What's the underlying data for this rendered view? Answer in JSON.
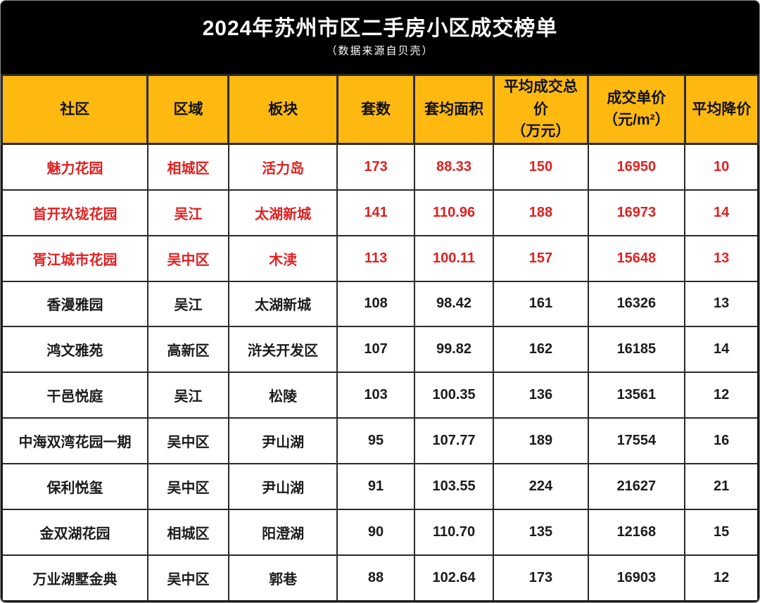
{
  "title_band": {
    "title": "2024年苏州市区二手房小区成交榜单",
    "subtitle": "（数据来源自贝壳）"
  },
  "chart_data": {
    "type": "table",
    "title": "2024年苏州市区二手房小区成交榜单",
    "subtitle": "（数据来源自贝壳）",
    "columns": [
      "社区",
      "区域",
      "板块",
      "套数",
      "套均面积",
      "平均成交总价（万元）",
      "成交单价（元/m²）",
      "平均降价"
    ],
    "columns_display": [
      "社区",
      "区域",
      "板块",
      "套数",
      "套均面积",
      "平均成交总价\n（万元）",
      "成交单价\n（元/m²）",
      "平均降价"
    ],
    "rows": [
      {
        "community": "魅力花园",
        "district": "相城区",
        "plate": "活力岛",
        "units": "173",
        "avg_area": "88.33",
        "avg_total_price": "150",
        "unit_price": "16950",
        "avg_discount": "10",
        "highlight": true
      },
      {
        "community": "首开玖珑花园",
        "district": "吴江",
        "plate": "太湖新城",
        "units": "141",
        "avg_area": "110.96",
        "avg_total_price": "188",
        "unit_price": "16973",
        "avg_discount": "14",
        "highlight": true
      },
      {
        "community": "胥江城市花园",
        "district": "吴中区",
        "plate": "木渎",
        "units": "113",
        "avg_area": "100.11",
        "avg_total_price": "157",
        "unit_price": "15648",
        "avg_discount": "13",
        "highlight": true
      },
      {
        "community": "香漫雅园",
        "district": "吴江",
        "plate": "太湖新城",
        "units": "108",
        "avg_area": "98.42",
        "avg_total_price": "161",
        "unit_price": "16326",
        "avg_discount": "13",
        "highlight": false
      },
      {
        "community": "鸿文雅苑",
        "district": "高新区",
        "plate": "浒关开发区",
        "units": "107",
        "avg_area": "99.82",
        "avg_total_price": "162",
        "unit_price": "16185",
        "avg_discount": "14",
        "highlight": false
      },
      {
        "community": "干邑悦庭",
        "district": "吴江",
        "plate": "松陵",
        "units": "103",
        "avg_area": "100.35",
        "avg_total_price": "136",
        "unit_price": "13561",
        "avg_discount": "12",
        "highlight": false
      },
      {
        "community": "中海双湾花园一期",
        "district": "吴中区",
        "plate": "尹山湖",
        "units": "95",
        "avg_area": "107.77",
        "avg_total_price": "189",
        "unit_price": "17554",
        "avg_discount": "16",
        "highlight": false
      },
      {
        "community": "保利悦玺",
        "district": "吴中区",
        "plate": "尹山湖",
        "units": "91",
        "avg_area": "103.55",
        "avg_total_price": "224",
        "unit_price": "21627",
        "avg_discount": "21",
        "highlight": false
      },
      {
        "community": "金双湖花园",
        "district": "相城区",
        "plate": "阳澄湖",
        "units": "90",
        "avg_area": "110.70",
        "avg_total_price": "135",
        "unit_price": "12168",
        "avg_discount": "15",
        "highlight": false
      },
      {
        "community": "万业湖墅金典",
        "district": "吴中区",
        "plate": "郭巷",
        "units": "88",
        "avg_area": "102.64",
        "avg_total_price": "173",
        "unit_price": "16903",
        "avg_discount": "12",
        "highlight": false
      }
    ]
  },
  "colors": {
    "band_bg": "#000000",
    "header_bg": "#FDB910",
    "highlight_text": "#E02020",
    "normal_text": "#1B1B1B"
  }
}
